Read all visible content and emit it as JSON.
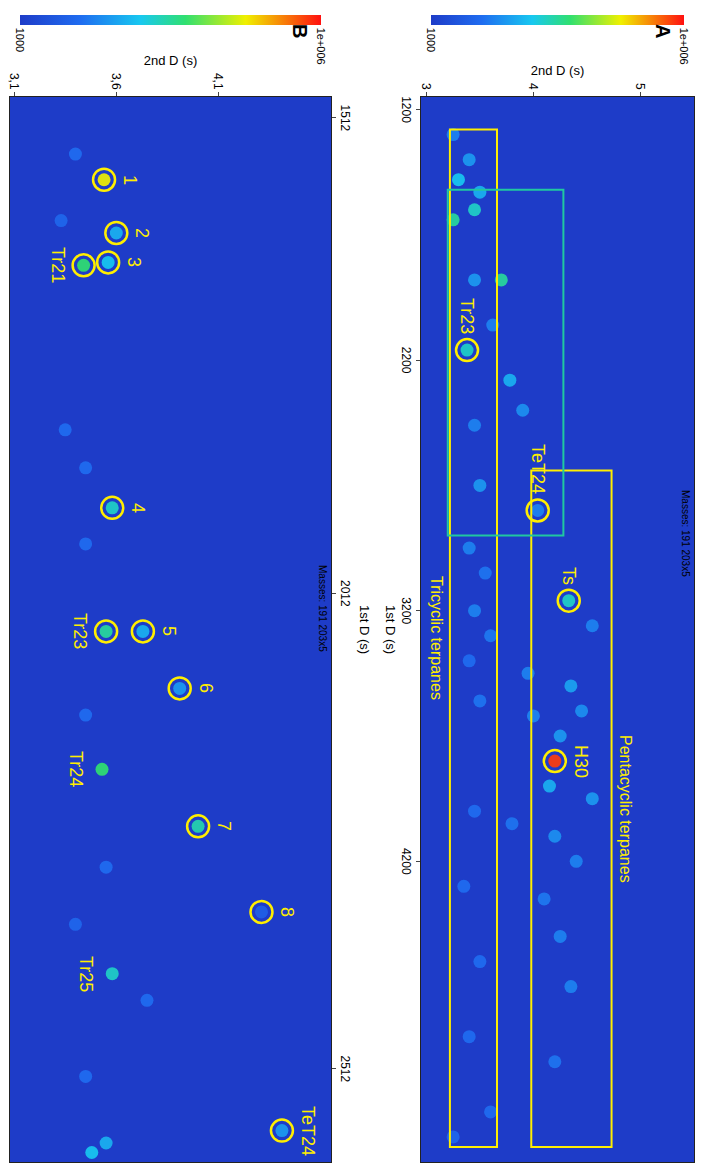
{
  "chart_data": [
    {
      "type": "scatter",
      "panel": "A",
      "annotation": "Masses: 191 203x5",
      "xlabel": "1st D (s)",
      "ylabel": "2nd D (s)",
      "xlim": [
        1150,
        5400
      ],
      "xticks": [
        1200,
        2200,
        3200,
        4200
      ],
      "ylim": [
        2.95,
        5.5
      ],
      "yticks": [
        3,
        4,
        5
      ],
      "grid": false,
      "colorbar": {
        "range": [
          1000,
          1000000
        ],
        "ticks": [
          1000,
          {
            "value": 1000000,
            "label": "1e+006"
          }
        ]
      },
      "peaks": {
        "t1": [
          1300,
          1400,
          1480,
          1530,
          1600,
          1640,
          1880,
          1880,
          2060,
          2160,
          2280,
          2400,
          2460,
          2700,
          2800,
          2950,
          3050,
          3160,
          3200,
          3260,
          3300,
          3400,
          3450,
          3500,
          3560,
          3600,
          3620,
          3700,
          3800,
          3900,
          3950,
          4000,
          4050,
          4100,
          4200,
          4300,
          4350,
          4500,
          4600,
          4700,
          4900,
          5000,
          5200,
          5300
        ],
        "t2": [
          3.25,
          3.4,
          3.3,
          3.5,
          3.45,
          3.25,
          3.7,
          3.45,
          3.62,
          3.38,
          3.78,
          3.9,
          3.45,
          3.5,
          4.04,
          3.4,
          3.55,
          4.33,
          3.45,
          4.55,
          3.6,
          3.4,
          3.95,
          4.35,
          3.5,
          4.45,
          4.0,
          4.25,
          4.2,
          4.15,
          4.55,
          3.45,
          3.8,
          4.2,
          4.4,
          3.35,
          4.1,
          4.25,
          3.5,
          4.35,
          3.4,
          4.2,
          3.6,
          3.25
        ],
        "intensity": [
          250000,
          300000,
          400000,
          350000,
          450000,
          500000,
          500000,
          300000,
          250000,
          450000,
          350000,
          280000,
          250000,
          300000,
          250000,
          250000,
          220000,
          450000,
          250000,
          250000,
          230000,
          200000,
          250000,
          320000,
          220000,
          280000,
          260000,
          300000,
          950000,
          350000,
          300000,
          200000,
          220000,
          280000,
          250000,
          200000,
          230000,
          250000,
          200000,
          250000,
          200000,
          220000,
          200000,
          180000
        ]
      },
      "labels": [
        {
          "text": "Tr23",
          "x": 2160,
          "y": 3.38,
          "position": "left",
          "marker": "circle"
        },
        {
          "text": "TeT24",
          "x": 2800,
          "y": 4.04,
          "position": "left",
          "marker": "circle"
        },
        {
          "text": "Ts",
          "x": 3160,
          "y": 4.33,
          "position": "left",
          "marker": "circle"
        },
        {
          "text": "H30",
          "x": 3800,
          "y": 4.2,
          "position": "above",
          "marker": "circle"
        }
      ],
      "regions": [
        {
          "text": "Tricyclic terpanes",
          "xlim": [
            1280,
            5340
          ],
          "ylim": [
            3.22,
            3.66
          ],
          "position": "below",
          "color": "#ffee00"
        },
        {
          "text": "Pentacyclic terpanes",
          "xlim": [
            2640,
            5340
          ],
          "ylim": [
            3.98,
            4.73
          ],
          "position": "above",
          "color": "#ffee00"
        }
      ],
      "zoom_box": {
        "xlim": [
          1520,
          2900
        ],
        "ylim": [
          3.2,
          4.28
        ],
        "color": "#20c8a0"
      }
    },
    {
      "type": "scatter",
      "panel": "B",
      "annotation": "Masses: 191 203x5",
      "xlabel": "1st D (s)",
      "ylabel": "2nd D (s)",
      "xlim": [
        1490,
        2610
      ],
      "xticks": [
        1512,
        2012,
        2512
      ],
      "ylim": [
        3.08,
        4.65
      ],
      "yticks": [
        {
          "value": 3.1,
          "label": "3,1"
        },
        {
          "value": 3.6,
          "label": "3,6"
        },
        {
          "value": 4.1,
          "label": "4,1"
        }
      ],
      "grid": false,
      "colorbar": {
        "range": [
          1000,
          1000000
        ],
        "ticks": [
          1000,
          {
            "value": 1000000,
            "label": "1e+006"
          }
        ]
      },
      "peaks": {
        "t1": [
          1550,
          1577,
          1620,
          1633,
          1664,
          1667,
          1840,
          1880,
          1922,
          1960,
          2052,
          2052,
          2112,
          2140,
          2197,
          2257,
          2300,
          2347,
          2360,
          2412,
          2440,
          2520,
          2577,
          2590,
          2600
        ],
        "t2": [
          3.4,
          3.54,
          3.33,
          3.6,
          3.56,
          3.44,
          3.35,
          3.45,
          3.58,
          3.45,
          3.55,
          3.73,
          3.91,
          3.45,
          3.53,
          4.0,
          3.55,
          4.31,
          3.4,
          3.58,
          3.75,
          3.45,
          4.41,
          3.55,
          3.48
        ],
        "intensity": [
          200000,
          750000,
          180000,
          350000,
          400000,
          550000,
          200000,
          200000,
          450000,
          200000,
          500000,
          350000,
          300000,
          200000,
          550000,
          480000,
          200000,
          150000,
          180000,
          450000,
          200000,
          200000,
          300000,
          350000,
          400000
        ]
      },
      "labels": [
        {
          "text": "1",
          "x": 1577,
          "y": 3.54,
          "position": "above",
          "marker": "circle"
        },
        {
          "text": "2",
          "x": 1633,
          "y": 3.6,
          "position": "above",
          "marker": "circle"
        },
        {
          "text": "3",
          "x": 1664,
          "y": 3.56,
          "position": "above",
          "marker": "circle"
        },
        {
          "text": "Tr21",
          "x": 1667,
          "y": 3.44,
          "position": "below",
          "marker": "circle"
        },
        {
          "text": "4",
          "x": 1922,
          "y": 3.58,
          "position": "above",
          "marker": "circle"
        },
        {
          "text": "Tr23",
          "x": 2052,
          "y": 3.55,
          "position": "below",
          "marker": "circle"
        },
        {
          "text": "5",
          "x": 2052,
          "y": 3.73,
          "position": "above",
          "marker": "circle"
        },
        {
          "text": "6",
          "x": 2112,
          "y": 3.91,
          "position": "above",
          "marker": "circle"
        },
        {
          "text": "Tr24",
          "x": 2197,
          "y": 3.53,
          "position": "below",
          "marker": "none"
        },
        {
          "text": "7",
          "x": 2257,
          "y": 4.0,
          "position": "above",
          "marker": "circle"
        },
        {
          "text": "8",
          "x": 2347,
          "y": 4.31,
          "position": "above",
          "marker": "circle"
        },
        {
          "text": "Tr25",
          "x": 2412,
          "y": 3.58,
          "position": "below",
          "marker": "none"
        },
        {
          "text": "TeT24",
          "x": 2577,
          "y": 4.41,
          "position": "above",
          "marker": "circle"
        }
      ]
    }
  ]
}
